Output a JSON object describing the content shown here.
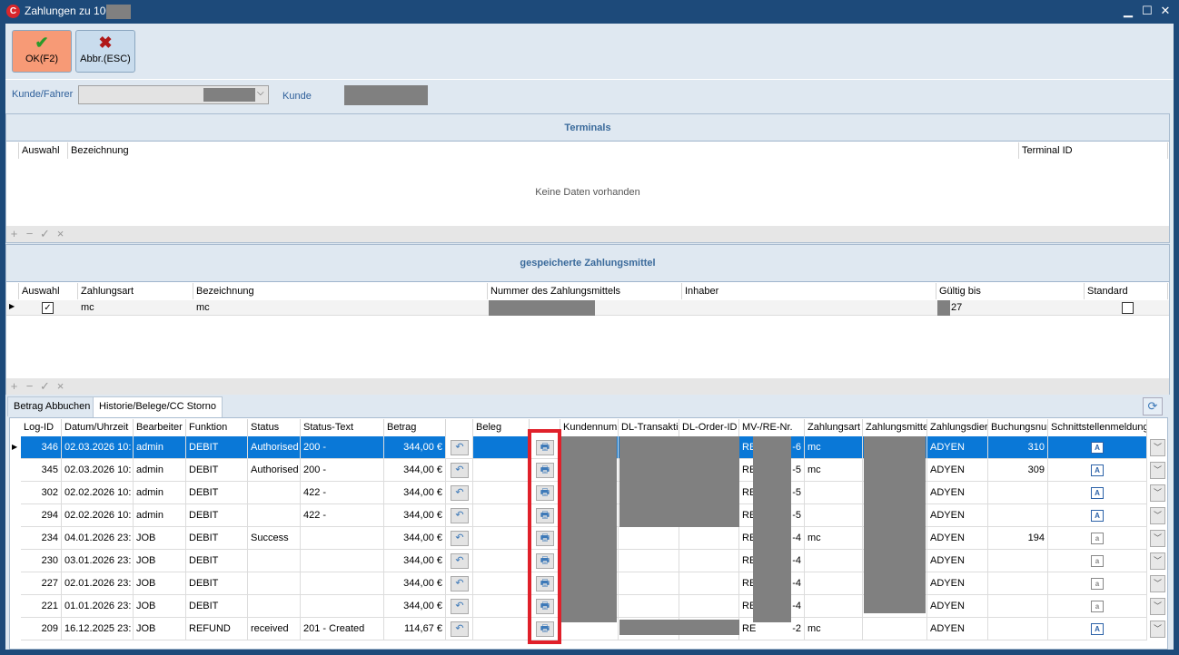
{
  "window": {
    "title": "Zahlungen zu 100",
    "minimize": "▁",
    "maximize": "☐",
    "close": "✕",
    "app_icon": "app-logo-icon"
  },
  "toolbar": {
    "ok_label": "OK(F2)",
    "cancel_label": "Abbr.(ESC)",
    "ok_color": "#f79a76"
  },
  "filter": {
    "customer_driver_label": "Kunde/Fahrer",
    "customer_label": "Kunde"
  },
  "terminals": {
    "title": "Terminals",
    "columns": [
      "Auswahl",
      "Bezeichnung",
      "Terminal ID"
    ],
    "empty": "Keine Daten vorhanden"
  },
  "saved_methods": {
    "title": "gespeicherte Zahlungsmittel",
    "columns": [
      "Auswahl",
      "Zahlungsart",
      "Bezeichnung",
      "Nummer des Zahlungsmittels",
      "Inhaber",
      "Gültig bis",
      "Standard"
    ],
    "rows": [
      {
        "selected": true,
        "type": "mc",
        "name": "mc",
        "valid_until": "27",
        "default": false
      }
    ]
  },
  "tabs": [
    "Betrag Abbuchen",
    "Historie/Belege/CC Storno"
  ],
  "active_tab": 1,
  "history": {
    "columns": [
      "Log-ID",
      "Datum/Uhrzeit",
      "Bearbeiter",
      "Funktion",
      "Status",
      "Status-Text",
      "Betrag",
      "",
      "Beleg",
      "",
      "Kundennumm",
      "DL-Transakti",
      "DL-Order-ID",
      "MV-/RE-Nr.",
      "Zahlungsart",
      "Zahlungsmitte",
      "Zahlungsdier",
      "Buchungsnur",
      "Schnittstellenmeldung des"
    ],
    "rows": [
      {
        "id": "346",
        "date": "02.03.2026 10:",
        "user": "admin",
        "func": "DEBIT",
        "status": "Authorised",
        "status_text": "200 -",
        "amount": "344,00 €",
        "re_prefix": "RE",
        "re_suffix": "-6",
        "pay_type": "mc",
        "provider": "ADYEN",
        "booking": "310",
        "selected": true
      },
      {
        "id": "345",
        "date": "02.03.2026 10:",
        "user": "admin",
        "func": "DEBIT",
        "status": "Authorised",
        "status_text": "200 -",
        "amount": "344,00 €",
        "re_prefix": "RE",
        "re_suffix": "-5",
        "pay_type": "mc",
        "provider": "ADYEN",
        "booking": "309"
      },
      {
        "id": "302",
        "date": "02.02.2026 10:",
        "user": "admin",
        "func": "DEBIT",
        "status": "",
        "status_text": "422 -",
        "amount": "344,00 €",
        "re_prefix": "RE",
        "re_suffix": "-5",
        "pay_type": "",
        "provider": "ADYEN",
        "booking": ""
      },
      {
        "id": "294",
        "date": "02.02.2026 10:",
        "user": "admin",
        "func": "DEBIT",
        "status": "",
        "status_text": "422 -",
        "amount": "344,00 €",
        "re_prefix": "RE",
        "re_suffix": "-5",
        "pay_type": "",
        "provider": "ADYEN",
        "booking": ""
      },
      {
        "id": "234",
        "date": "04.01.2026 23:",
        "user": "JOB",
        "func": "DEBIT",
        "status": "Success",
        "status_text": "",
        "amount": "344,00 €",
        "re_prefix": "RE",
        "re_suffix": "-4",
        "pay_type": "mc",
        "provider": "ADYEN",
        "booking": "194"
      },
      {
        "id": "230",
        "date": "03.01.2026 23:",
        "user": "JOB",
        "func": "DEBIT",
        "status": "",
        "status_text": "",
        "amount": "344,00 €",
        "re_prefix": "RE",
        "re_suffix": "-4",
        "pay_type": "",
        "provider": "ADYEN",
        "booking": ""
      },
      {
        "id": "227",
        "date": "02.01.2026 23:",
        "user": "JOB",
        "func": "DEBIT",
        "status": "",
        "status_text": "",
        "amount": "344,00 €",
        "re_prefix": "RE",
        "re_suffix": "-4",
        "pay_type": "",
        "provider": "ADYEN",
        "booking": ""
      },
      {
        "id": "221",
        "date": "01.01.2026 23:",
        "user": "JOB",
        "func": "DEBIT",
        "status": "",
        "status_text": "",
        "amount": "344,00 €",
        "re_prefix": "RE",
        "re_suffix": "-4",
        "pay_type": "",
        "provider": "ADYEN",
        "booking": ""
      },
      {
        "id": "209",
        "date": "16.12.2025 23:",
        "user": "JOB",
        "func": "REFUND",
        "status": "received",
        "status_text": "201 - Created",
        "amount": "114,67 €",
        "re_prefix": "RE",
        "re_suffix": "-2",
        "pay_type": "mc",
        "provider": "ADYEN",
        "booking": ""
      }
    ]
  },
  "highlight_color": "#e0202a"
}
